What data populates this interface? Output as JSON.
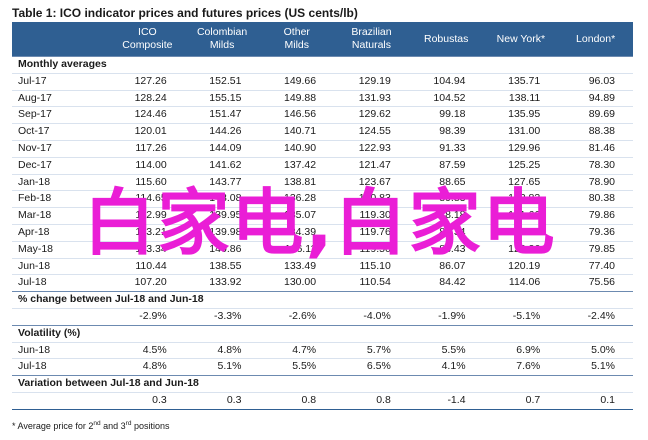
{
  "title": "Table 1:  ICO indicator prices and futures prices (US cents/lb)",
  "columns": [
    {
      "line1": "ICO",
      "line2": "Composite"
    },
    {
      "line1": "Colombian",
      "line2": "Milds"
    },
    {
      "line1": "Other",
      "line2": "Milds"
    },
    {
      "line1": "Brazilian",
      "line2": "Naturals"
    },
    {
      "line1": "Robustas",
      "line2": ""
    },
    {
      "line1": "New York*",
      "line2": ""
    },
    {
      "line1": "London*",
      "line2": ""
    }
  ],
  "sections": {
    "monthly": {
      "header": "Monthly averages",
      "rows": [
        {
          "label": "Jul-17",
          "values": [
            "127.26",
            "152.51",
            "149.66",
            "129.19",
            "104.94",
            "135.71",
            "96.03"
          ]
        },
        {
          "label": "Aug-17",
          "values": [
            "128.24",
            "155.15",
            "149.88",
            "131.93",
            "104.52",
            "138.11",
            "94.89"
          ]
        },
        {
          "label": "Sep-17",
          "values": [
            "124.46",
            "151.47",
            "146.56",
            "129.62",
            "99.18",
            "135.95",
            "89.69"
          ]
        },
        {
          "label": "Oct-17",
          "values": [
            "120.01",
            "144.26",
            "140.71",
            "124.55",
            "98.39",
            "131.00",
            "88.38"
          ]
        },
        {
          "label": "Nov-17",
          "values": [
            "117.26",
            "144.09",
            "140.90",
            "122.93",
            "91.33",
            "129.96",
            "81.46"
          ]
        },
        {
          "label": "Dec-17",
          "values": [
            "114.00",
            "141.62",
            "137.42",
            "121.47",
            "87.59",
            "125.25",
            "78.30"
          ]
        },
        {
          "label": "Jan-18",
          "values": [
            "115.60",
            "143.77",
            "138.81",
            "123.67",
            "88.65",
            "127.65",
            "78.90"
          ]
        },
        {
          "label": "Feb-18",
          "values": [
            "114.65",
            "143.08",
            "136.28",
            "120.83",
            "89.83",
            "123.83",
            "80.38"
          ]
        },
        {
          "label": "Mar-18",
          "values": [
            "112.99",
            "139.95",
            "135.07",
            "119.30",
            "88.18",
            "121.66",
            "79.86"
          ]
        },
        {
          "label": "Apr-18",
          "values": [
            "113.21",
            "139.98",
            "134.39",
            "119.76",
            "88.34",
            "121.93",
            "79.36"
          ]
        },
        {
          "label": "May-18",
          "values": [
            "113.34",
            "140.86",
            "136.11",
            "119.50",
            "88.43",
            "123.26",
            "79.85"
          ]
        },
        {
          "label": "Jun-18",
          "values": [
            "110.44",
            "138.55",
            "133.49",
            "115.10",
            "86.07",
            "120.19",
            "77.40"
          ]
        },
        {
          "label": "Jul-18",
          "values": [
            "107.20",
            "133.92",
            "130.00",
            "110.54",
            "84.42",
            "114.06",
            "75.56"
          ]
        }
      ]
    },
    "change": {
      "header": "% change between Jul-18 and Jun-18",
      "values": [
        "-2.9%",
        "-3.3%",
        "-2.6%",
        "-4.0%",
        "-1.9%",
        "-5.1%",
        "-2.4%"
      ]
    },
    "volatility": {
      "header": "Volatility (%)",
      "rows": [
        {
          "label": "Jun-18",
          "values": [
            "4.5%",
            "4.8%",
            "4.7%",
            "5.7%",
            "5.5%",
            "6.9%",
            "5.0%"
          ]
        },
        {
          "label": "Jul-18",
          "values": [
            "4.8%",
            "5.1%",
            "5.5%",
            "6.5%",
            "4.1%",
            "7.6%",
            "5.1%"
          ]
        }
      ]
    },
    "variation": {
      "header": "Variation between Jul-18 and Jun-18",
      "values": [
        "0.3",
        "0.3",
        "0.8",
        "0.8",
        "-1.4",
        "0.7",
        "0.1"
      ]
    }
  },
  "footnote": {
    "prefix": "* Average price for 2",
    "sup1": "nd",
    "mid": " and 3",
    "sup2": "rd",
    "suffix": " positions"
  },
  "watermark": "白家电,白家电",
  "colors": {
    "header_bg": "#2f5f92",
    "watermark": "#ea1ed6"
  }
}
